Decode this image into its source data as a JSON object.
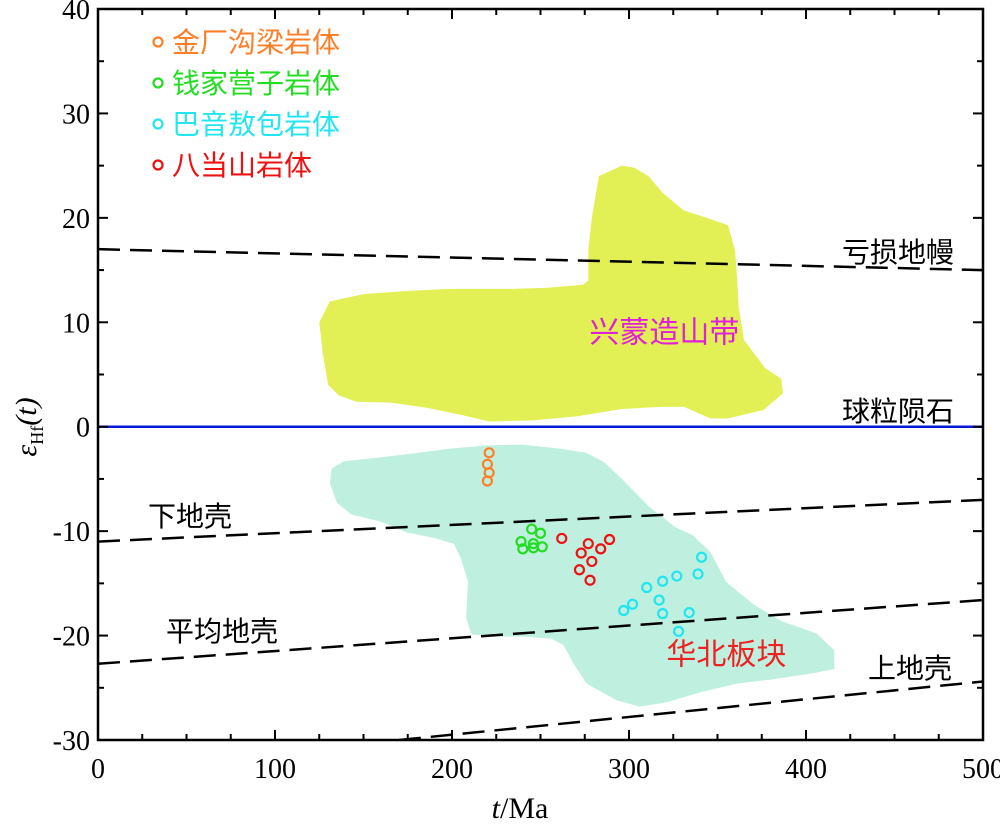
{
  "chart_data": {
    "type": "scatter",
    "xlabel_italic": "t",
    "xlabel_unit": "/Ma",
    "ylabel_symbol": "ε",
    "ylabel_sub": "Hf",
    "ylabel_arg": "(t)",
    "xlim": [
      0,
      500
    ],
    "ylim": [
      -30,
      40
    ],
    "x_ticks": [
      0,
      100,
      200,
      300,
      400,
      500
    ],
    "y_ticks": [
      -30,
      -20,
      -10,
      0,
      10,
      20,
      30,
      40
    ],
    "x_tick_labels": [
      "0",
      "100",
      "200",
      "300",
      "400",
      "500"
    ],
    "y_tick_labels": [
      "-30",
      "-20",
      "-10",
      "0",
      "10",
      "20",
      "30",
      "40"
    ],
    "grid": false,
    "legend_position": "top-left",
    "series": [
      {
        "name": "金厂沟梁岩体",
        "color": "#ff7f27",
        "marker": "open-circle",
        "points": [
          [
            221,
            -2.5
          ],
          [
            220,
            -3.6
          ],
          [
            221,
            -4.4
          ],
          [
            220,
            -5.2
          ]
        ]
      },
      {
        "name": "钱家营子岩体",
        "color": "#22dd22",
        "marker": "open-circle",
        "points": [
          [
            245,
            -9.8
          ],
          [
            250,
            -10.2
          ],
          [
            239,
            -11.0
          ],
          [
            246,
            -11.2
          ],
          [
            240,
            -11.7
          ],
          [
            246,
            -11.6
          ],
          [
            251,
            -11.5
          ]
        ]
      },
      {
        "name": "巴音敖包岩体",
        "color": "#22e5f0",
        "marker": "open-circle",
        "points": [
          [
            341,
            -12.5
          ],
          [
            339,
            -14.1
          ],
          [
            327,
            -14.3
          ],
          [
            319,
            -14.8
          ],
          [
            310,
            -15.4
          ],
          [
            317,
            -16.6
          ],
          [
            302,
            -17.0
          ],
          [
            297,
            -17.6
          ],
          [
            319,
            -17.9
          ],
          [
            334,
            -17.8
          ],
          [
            328,
            -19.6
          ]
        ]
      },
      {
        "name": "八当山岩体",
        "color": "#ee1111",
        "marker": "open-circle",
        "points": [
          [
            262,
            -10.7
          ],
          [
            289,
            -10.8
          ],
          [
            277,
            -11.2
          ],
          [
            284,
            -11.7
          ],
          [
            273,
            -12.1
          ],
          [
            279,
            -12.9
          ],
          [
            272,
            -13.7
          ],
          [
            278,
            -14.7
          ]
        ]
      }
    ],
    "reference_lines": [
      {
        "name": "亏损地幔",
        "style": "dashed",
        "color": "#000000",
        "points": [
          [
            0,
            17
          ],
          [
            500,
            15
          ]
        ]
      },
      {
        "name": "球粒陨石",
        "style": "solid",
        "color": "#0a1adc",
        "points": [
          [
            0,
            0
          ],
          [
            500,
            0
          ]
        ]
      },
      {
        "name": "下地壳",
        "style": "dashed",
        "color": "#000000",
        "points": [
          [
            0,
            -11
          ],
          [
            500,
            -7
          ]
        ]
      },
      {
        "name": "平均地壳",
        "style": "dashed",
        "color": "#000000",
        "points": [
          [
            0,
            -22.7
          ],
          [
            500,
            -16.6
          ]
        ]
      },
      {
        "name": "上地壳",
        "style": "dashed",
        "color": "#000000",
        "points": [
          [
            170,
            -30
          ],
          [
            500,
            -24.4
          ]
        ]
      }
    ],
    "regions": [
      {
        "name": "兴蒙造山带",
        "fill": "#e3f055",
        "label_color": "#e020d8",
        "label_at": [
          320,
          9
        ],
        "polygon": [
          [
            125,
            10
          ],
          [
            127,
            7
          ],
          [
            130,
            4
          ],
          [
            136,
            3
          ],
          [
            146,
            2.4
          ],
          [
            166,
            2.3
          ],
          [
            186,
            1.8
          ],
          [
            206,
            1.1
          ],
          [
            221,
            0.5
          ],
          [
            246,
            0.6
          ],
          [
            271,
            1
          ],
          [
            296,
            1.7
          ],
          [
            318,
            1.9
          ],
          [
            331,
            1.9
          ],
          [
            346,
            0.8
          ],
          [
            356,
            0.8
          ],
          [
            376,
            1.6
          ],
          [
            387,
            3.2
          ],
          [
            386,
            4.6
          ],
          [
            377,
            5.6
          ],
          [
            365,
            8.3
          ],
          [
            362,
            11.5
          ],
          [
            361,
            14.3
          ],
          [
            360,
            16.8
          ],
          [
            356,
            19.3
          ],
          [
            344,
            20
          ],
          [
            331,
            20.7
          ],
          [
            319,
            22.4
          ],
          [
            311,
            24
          ],
          [
            303,
            24.8
          ],
          [
            296,
            25
          ],
          [
            283,
            24
          ],
          [
            279,
            20
          ],
          [
            277,
            17
          ],
          [
            277,
            14
          ],
          [
            274,
            13.6
          ],
          [
            254,
            13.3
          ],
          [
            234,
            13.2
          ],
          [
            199,
            13.2
          ],
          [
            174,
            13
          ],
          [
            150,
            12.7
          ],
          [
            131,
            12
          ]
        ]
      },
      {
        "name": "华北板块",
        "fill": "#bff0df",
        "label_color": "#ee2222",
        "label_at": [
          355,
          -21.8
        ],
        "polygon": [
          [
            135,
            -7.3
          ],
          [
            131,
            -5.4
          ],
          [
            132,
            -4
          ],
          [
            139,
            -3.3
          ],
          [
            156,
            -3
          ],
          [
            176,
            -2.6
          ],
          [
            199,
            -2.1
          ],
          [
            219,
            -1.8
          ],
          [
            239,
            -1.7
          ],
          [
            261,
            -2.1
          ],
          [
            276,
            -2.5
          ],
          [
            286,
            -3.4
          ],
          [
            296,
            -5
          ],
          [
            311,
            -7.6
          ],
          [
            326,
            -9.6
          ],
          [
            336,
            -10.4
          ],
          [
            346,
            -12
          ],
          [
            355,
            -14.9
          ],
          [
            371,
            -17.1
          ],
          [
            386,
            -18.6
          ],
          [
            406,
            -19.8
          ],
          [
            416,
            -21.4
          ],
          [
            416,
            -23.2
          ],
          [
            404,
            -23.6
          ],
          [
            381,
            -24.2
          ],
          [
            361,
            -24.6
          ],
          [
            341,
            -25.4
          ],
          [
            321,
            -26.4
          ],
          [
            306,
            -26.8
          ],
          [
            293,
            -26.2
          ],
          [
            276,
            -24.6
          ],
          [
            268,
            -22.5
          ],
          [
            263,
            -20.9
          ],
          [
            256,
            -20.3
          ],
          [
            241,
            -20.1
          ],
          [
            223,
            -20.1
          ],
          [
            211,
            -19.9
          ],
          [
            208,
            -18.3
          ],
          [
            209,
            -14.8
          ],
          [
            205,
            -12.6
          ],
          [
            201,
            -11.2
          ],
          [
            191,
            -10.7
          ],
          [
            174,
            -10.1
          ],
          [
            160,
            -9.1
          ],
          [
            143,
            -8.4
          ]
        ]
      }
    ]
  }
}
